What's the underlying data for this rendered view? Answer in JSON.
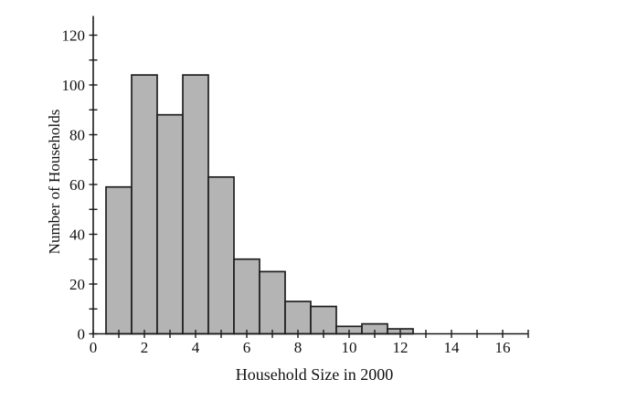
{
  "chart_data": {
    "type": "bar",
    "subtype": "histogram",
    "title": "",
    "xlabel": "Household Size in 2000",
    "ylabel": "Number of Households",
    "categories": [
      1,
      2,
      3,
      4,
      5,
      6,
      7,
      8,
      9,
      10,
      11,
      12
    ],
    "values": [
      59,
      104,
      88,
      104,
      63,
      30,
      25,
      13,
      11,
      3,
      4,
      2
    ],
    "bin_width": 1,
    "xlim": [
      0,
      17
    ],
    "ylim": [
      0,
      128
    ],
    "x_minor_tick_step": 1,
    "x_labeled_ticks": [
      0,
      2,
      4,
      6,
      8,
      10,
      12,
      14,
      16
    ],
    "y_minor_tick_step": 10,
    "y_labeled_ticks": [
      0,
      20,
      40,
      60,
      80,
      100,
      120
    ],
    "grid": false,
    "legend": false,
    "colors": {
      "bar_fill": "#b4b4b4",
      "bar_stroke": "#1f1f1f",
      "axis": "#1a1a1a",
      "text": "#111111",
      "background": "#ffffff"
    }
  }
}
